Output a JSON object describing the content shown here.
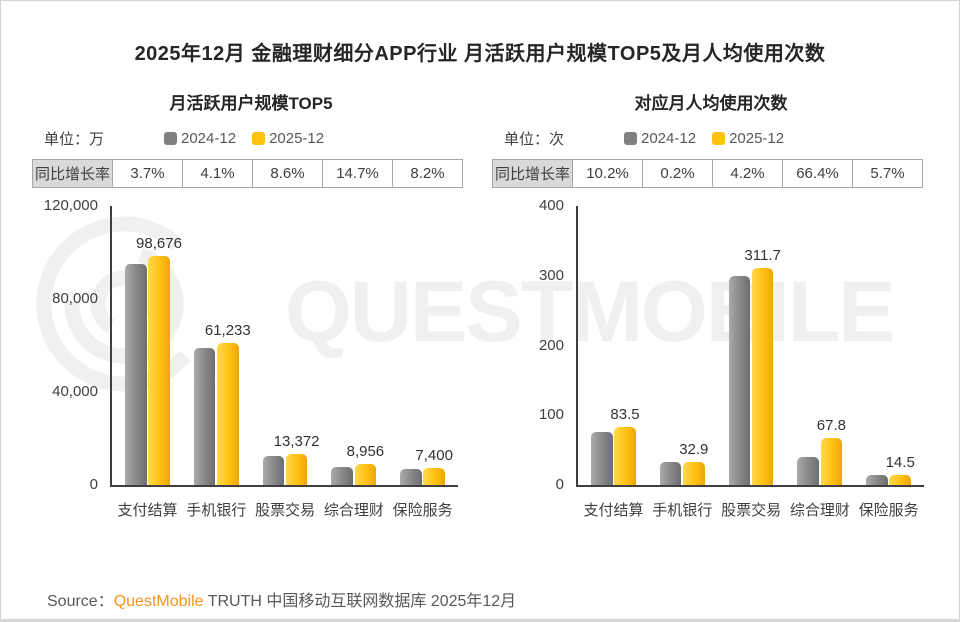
{
  "page": {
    "title": "2025年12月 金融理财细分APP行业 月活跃用户规模TOP5及月人均使用次数",
    "source": {
      "prefix": "Source：",
      "brand": "QuestMobile",
      "suffix": " TRUTH 中国移动互联网数据库 2025年12月"
    },
    "watermark": {
      "text": "QUESTMOBILE",
      "logo": "questmobile-rings-logo",
      "color": "#f0f0f0"
    }
  },
  "colors": {
    "bar_2024": "#8c8c8c",
    "bar_2025": "#ffc112",
    "accent_orange": "#f7941e",
    "table_label_bg": "#d9d9d9",
    "table_border": "#a6a6a6",
    "axis": "#3f3f3f",
    "watermark": "#f0f0f0"
  },
  "legend": [
    {
      "label": "2024-12",
      "color": "#808080"
    },
    {
      "label": "2025-12",
      "color": "#ffc112"
    }
  ],
  "panels": [
    {
      "subtitle": "月活跃用户规模TOP5",
      "unit_label": "单位：万",
      "growth_row": {
        "label": "同比增长率",
        "values": [
          "3.7%",
          "4.1%",
          "8.6%",
          "14.7%",
          "8.2%"
        ]
      },
      "chart_data": {
        "type": "bar",
        "title": "月活跃用户规模TOP5",
        "unit": "万",
        "categories": [
          "支付结算",
          "手机银行",
          "股票交易",
          "综合理财",
          "保险服务"
        ],
        "series": [
          {
            "name": "2024-12",
            "values": [
              95155,
              58821,
              12313,
              7808,
              6839
            ],
            "estimated": true
          },
          {
            "name": "2025-12",
            "values": [
              98676,
              61233,
              13372,
              8956,
              7400
            ],
            "labels": [
              "98,676",
              "61,233",
              "13,372",
              "8,956",
              "7,400"
            ]
          }
        ],
        "yoy_growth": [
          "3.7%",
          "4.1%",
          "8.6%",
          "14.7%",
          "8.2%"
        ],
        "ylim": [
          0,
          120000
        ],
        "yticks": [
          {
            "value": 0,
            "label": "0"
          },
          {
            "value": 40000,
            "label": "40,000"
          },
          {
            "value": 80000,
            "label": "80,000"
          },
          {
            "value": 120000,
            "label": "120,000"
          }
        ],
        "grid": false,
        "legend_position": "top"
      }
    },
    {
      "subtitle": "对应月人均使用次数",
      "unit_label": "单位：次",
      "growth_row": {
        "label": "同比增长率",
        "values": [
          "10.2%",
          "0.2%",
          "4.2%",
          "66.4%",
          "5.7%"
        ]
      },
      "chart_data": {
        "type": "bar",
        "title": "对应月人均使用次数",
        "unit": "次",
        "categories": [
          "支付结算",
          "手机银行",
          "股票交易",
          "综合理财",
          "保险服务"
        ],
        "series": [
          {
            "name": "2024-12",
            "values": [
              75.8,
              32.8,
              299.1,
              40.7,
              13.7
            ],
            "estimated": true
          },
          {
            "name": "2025-12",
            "values": [
              83.5,
              32.9,
              311.7,
              67.8,
              14.5
            ],
            "labels": [
              "83.5",
              "32.9",
              "311.7",
              "67.8",
              "14.5"
            ]
          }
        ],
        "yoy_growth": [
          "10.2%",
          "0.2%",
          "4.2%",
          "66.4%",
          "5.7%"
        ],
        "ylim": [
          0,
          400
        ],
        "yticks": [
          {
            "value": 0,
            "label": "0"
          },
          {
            "value": 100,
            "label": "100"
          },
          {
            "value": 200,
            "label": "200"
          },
          {
            "value": 300,
            "label": "300"
          },
          {
            "value": 400,
            "label": "400"
          }
        ],
        "grid": false,
        "legend_position": "top"
      }
    }
  ]
}
